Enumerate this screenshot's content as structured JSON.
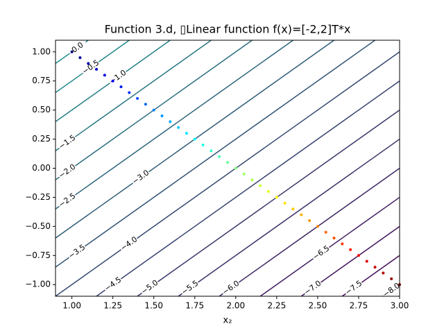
{
  "chart_data": {
    "type": "contour",
    "title": "Function 3.d, ▯Linear function f(x)=[-2,2]T*x",
    "xlabel": "x₂",
    "xlim": [
      0.9,
      3.0
    ],
    "ylim": [
      -1.1,
      1.1
    ],
    "xticks": [
      {
        "value": 1,
        "label": "1.00"
      },
      {
        "value": 1.25,
        "label": "1.25"
      },
      {
        "value": 1.5,
        "label": "1.50"
      },
      {
        "value": 1.75,
        "label": "1.75"
      },
      {
        "value": 2,
        "label": "2.00"
      },
      {
        "value": 2.25,
        "label": "2.25"
      },
      {
        "value": 2.5,
        "label": "2.50"
      },
      {
        "value": 2.75,
        "label": "2.75"
      },
      {
        "value": 3,
        "label": "3.00"
      }
    ],
    "yticks": [
      {
        "value": -1,
        "label": "−1.00"
      },
      {
        "value": -0.75,
        "label": "−0.75"
      },
      {
        "value": -0.5,
        "label": "−0.50"
      },
      {
        "value": -0.25,
        "label": "−0.25"
      },
      {
        "value": 0,
        "label": "0.00"
      },
      {
        "value": 0.25,
        "label": "0.25"
      },
      {
        "value": 0.5,
        "label": "0.50"
      },
      {
        "value": 0.75,
        "label": "0.75"
      },
      {
        "value": 1,
        "label": "1.00"
      }
    ],
    "levels": [
      {
        "value": 0,
        "label": "0.0"
      },
      {
        "value": -0.5,
        "label": "−0.5"
      },
      {
        "value": -1,
        "label": "−1.0"
      },
      {
        "value": -1.5,
        "label": "−1.5"
      },
      {
        "value": -2,
        "label": "−2.0"
      },
      {
        "value": -2.5,
        "label": "−2.5"
      },
      {
        "value": -3,
        "label": "−3.0"
      },
      {
        "value": -3.5,
        "label": "−3.5"
      },
      {
        "value": -4,
        "label": "−4.0"
      },
      {
        "value": -4.5,
        "label": "−4.5"
      },
      {
        "value": -5,
        "label": "−5.0"
      },
      {
        "value": -5.5,
        "label": "−5.5"
      },
      {
        "value": -6,
        "label": "−6.0"
      },
      {
        "value": -6.5,
        "label": "−6.5"
      },
      {
        "value": -7,
        "label": "−7.0"
      },
      {
        "value": -7.5,
        "label": "−7.5"
      },
      {
        "value": -8,
        "label": "−8.0"
      }
    ],
    "function_coefficients": [
      -2,
      2
    ],
    "level_colors": [
      "#21918c",
      "#440154"
    ],
    "path": {
      "cmap": "jet",
      "x": [
        1.0,
        1.05,
        1.1,
        1.15,
        1.2,
        1.25,
        1.3,
        1.35,
        1.4,
        1.45,
        1.5,
        1.55,
        1.6,
        1.65,
        1.7,
        1.75,
        1.8,
        1.85,
        1.9,
        1.95,
        2.0,
        2.05,
        2.1,
        2.15,
        2.2,
        2.25,
        2.3,
        2.35,
        2.4,
        2.45,
        2.5,
        2.55,
        2.6,
        2.65,
        2.7,
        2.75,
        2.8,
        2.85,
        2.9,
        2.95,
        3.0
      ],
      "y": [
        1.0,
        0.95,
        0.9,
        0.85,
        0.8,
        0.75,
        0.7,
        0.65,
        0.6,
        0.55,
        0.5,
        0.45,
        0.4,
        0.35,
        0.3,
        0.25,
        0.2,
        0.15,
        0.1,
        0.05,
        0.0,
        -0.05,
        -0.1,
        -0.15,
        -0.2,
        -0.25,
        -0.3,
        -0.35,
        -0.4,
        -0.45,
        -0.5,
        -0.55,
        -0.6,
        -0.65,
        -0.7,
        -0.75,
        -0.8,
        -0.85,
        -0.9,
        -0.95,
        -1.0
      ]
    }
  }
}
